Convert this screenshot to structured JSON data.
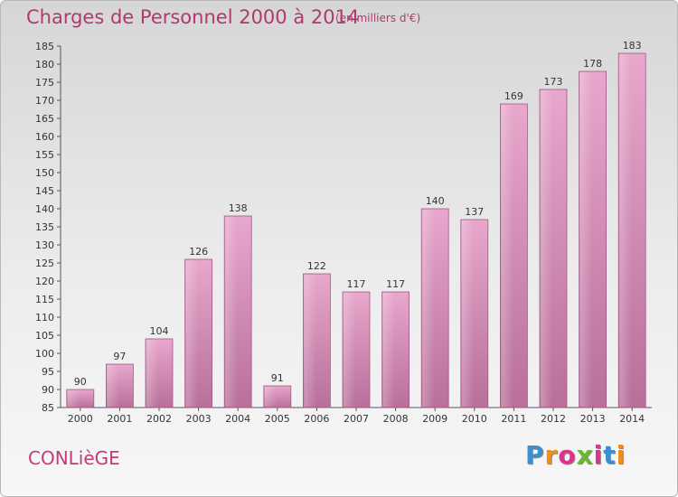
{
  "header": {
    "title": "Charges de Personnel 2000 à 2014",
    "subtitle": "(en milliers d'€)"
  },
  "footer": {
    "commune": "CONLièGE",
    "logo": [
      "P",
      "r",
      "o",
      "x",
      "i",
      "t",
      "i"
    ],
    "logo_colors": [
      "#3a8fd1",
      "#f28c1a",
      "#e0348c",
      "#6ab82e",
      "#e0348c",
      "#3a8fd1",
      "#f28c1a"
    ]
  },
  "chart_data": {
    "type": "bar",
    "title": "Charges de Personnel 2000 à 2014",
    "subtitle": "(en milliers d'€)",
    "categories": [
      "2000",
      "2001",
      "2002",
      "2003",
      "2004",
      "2005",
      "2006",
      "2007",
      "2008",
      "2009",
      "2010",
      "2011",
      "2012",
      "2013",
      "2014"
    ],
    "values": [
      90,
      97,
      104,
      126,
      138,
      91,
      122,
      117,
      117,
      140,
      137,
      169,
      173,
      178,
      183
    ],
    "ylim": [
      85,
      185
    ],
    "yticks": [
      85,
      90,
      95,
      100,
      105,
      110,
      115,
      120,
      125,
      130,
      135,
      140,
      145,
      150,
      155,
      160,
      165,
      170,
      175,
      180,
      185
    ],
    "grid": false,
    "bar_color": "#d98bb6"
  }
}
